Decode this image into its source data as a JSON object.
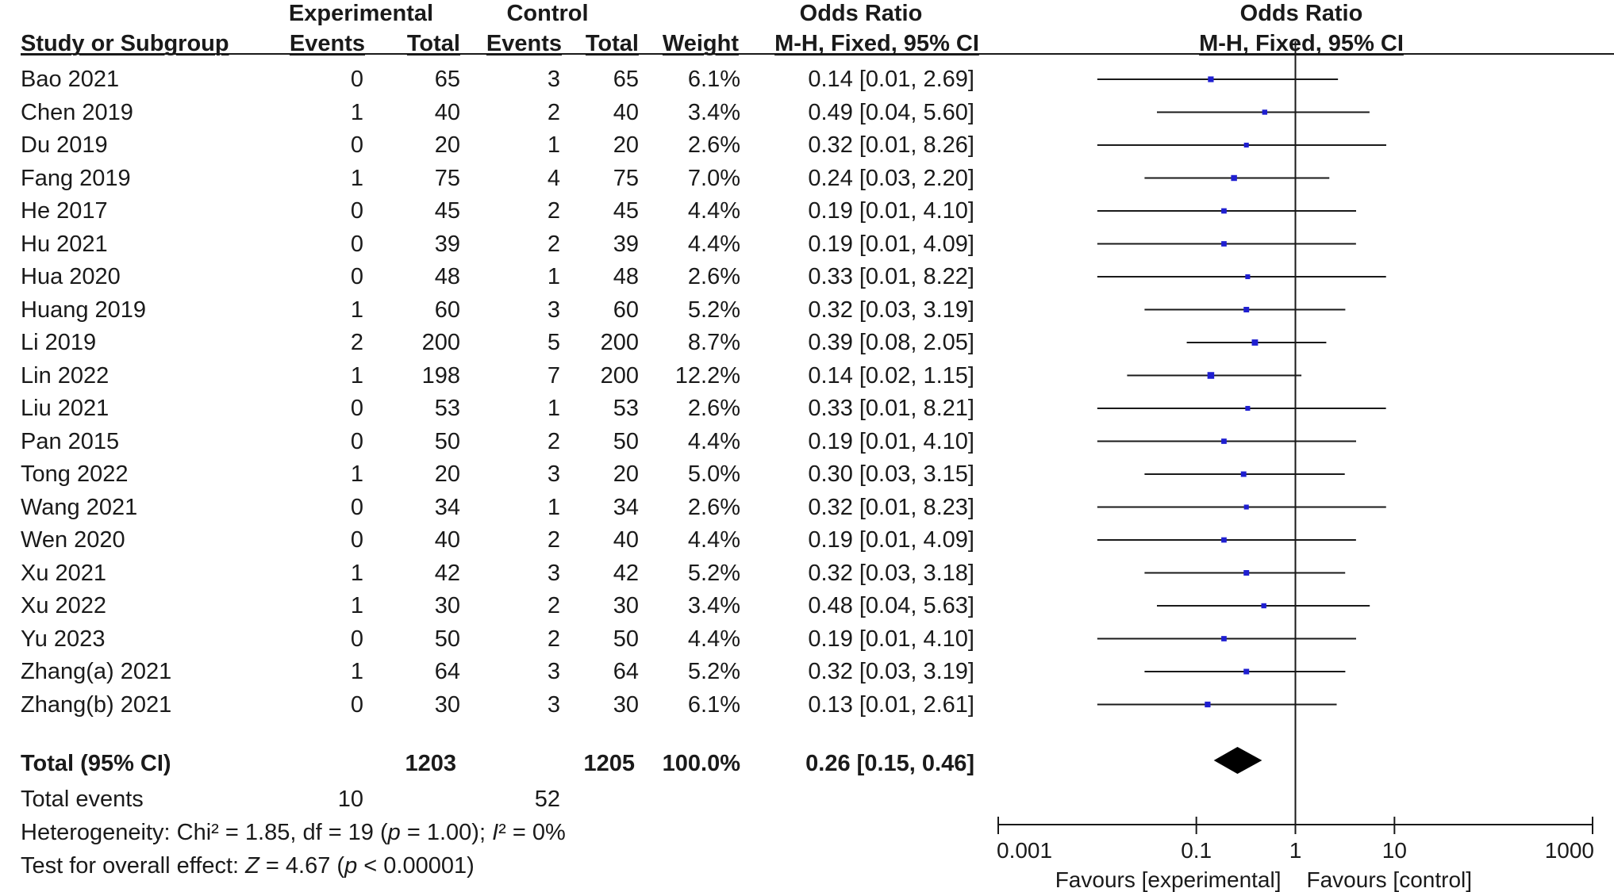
{
  "headers": {
    "group_experimental": "Experimental",
    "group_control": "Control",
    "odds_ratio_left": "Odds Ratio",
    "odds_ratio_right": "Odds Ratio",
    "study": "Study or Subgroup",
    "events_exp": "Events",
    "total_exp": "Total",
    "events_ctl": "Events",
    "total_ctl": "Total",
    "weight": "Weight",
    "method_left": "M-H, Fixed, 95% CI",
    "method_right": "M-H, Fixed, 95% CI"
  },
  "studies": [
    {
      "name": "Bao 2021",
      "e_events": "0",
      "e_total": "65",
      "c_events": "3",
      "c_total": "65",
      "weight": "6.1%",
      "ci": "0.14 [0.01, 2.69]"
    },
    {
      "name": "Chen 2019",
      "e_events": "1",
      "e_total": "40",
      "c_events": "2",
      "c_total": "40",
      "weight": "3.4%",
      "ci": "0.49 [0.04, 5.60]"
    },
    {
      "name": "Du 2019",
      "e_events": "0",
      "e_total": "20",
      "c_events": "1",
      "c_total": "20",
      "weight": "2.6%",
      "ci": "0.32 [0.01, 8.26]"
    },
    {
      "name": "Fang 2019",
      "e_events": "1",
      "e_total": "75",
      "c_events": "4",
      "c_total": "75",
      "weight": "7.0%",
      "ci": "0.24 [0.03, 2.20]"
    },
    {
      "name": "He 2017",
      "e_events": "0",
      "e_total": "45",
      "c_events": "2",
      "c_total": "45",
      "weight": "4.4%",
      "ci": "0.19 [0.01, 4.10]"
    },
    {
      "name": "Hu 2021",
      "e_events": "0",
      "e_total": "39",
      "c_events": "2",
      "c_total": "39",
      "weight": "4.4%",
      "ci": "0.19 [0.01, 4.09]"
    },
    {
      "name": "Hua 2020",
      "e_events": "0",
      "e_total": "48",
      "c_events": "1",
      "c_total": "48",
      "weight": "2.6%",
      "ci": "0.33 [0.01, 8.22]"
    },
    {
      "name": "Huang 2019",
      "e_events": "1",
      "e_total": "60",
      "c_events": "3",
      "c_total": "60",
      "weight": "5.2%",
      "ci": "0.32 [0.03, 3.19]"
    },
    {
      "name": "Li 2019",
      "e_events": "2",
      "e_total": "200",
      "c_events": "5",
      "c_total": "200",
      "weight": "8.7%",
      "ci": "0.39 [0.08, 2.05]"
    },
    {
      "name": "Lin 2022",
      "e_events": "1",
      "e_total": "198",
      "c_events": "7",
      "c_total": "200",
      "weight": "12.2%",
      "ci": "0.14 [0.02, 1.15]"
    },
    {
      "name": "Liu 2021",
      "e_events": "0",
      "e_total": "53",
      "c_events": "1",
      "c_total": "53",
      "weight": "2.6%",
      "ci": "0.33 [0.01, 8.21]"
    },
    {
      "name": "Pan 2015",
      "e_events": "0",
      "e_total": "50",
      "c_events": "2",
      "c_total": "50",
      "weight": "4.4%",
      "ci": "0.19 [0.01, 4.10]"
    },
    {
      "name": "Tong 2022",
      "e_events": "1",
      "e_total": "20",
      "c_events": "3",
      "c_total": "20",
      "weight": "5.0%",
      "ci": "0.30 [0.03, 3.15]"
    },
    {
      "name": "Wang 2021",
      "e_events": "0",
      "e_total": "34",
      "c_events": "1",
      "c_total": "34",
      "weight": "2.6%",
      "ci": "0.32 [0.01, 8.23]"
    },
    {
      "name": "Wen 2020",
      "e_events": "0",
      "e_total": "40",
      "c_events": "2",
      "c_total": "40",
      "weight": "4.4%",
      "ci": "0.19 [0.01, 4.09]"
    },
    {
      "name": "Xu 2021",
      "e_events": "1",
      "e_total": "42",
      "c_events": "3",
      "c_total": "42",
      "weight": "5.2%",
      "ci": "0.32 [0.03, 3.18]"
    },
    {
      "name": "Xu 2022",
      "e_events": "1",
      "e_total": "30",
      "c_events": "2",
      "c_total": "30",
      "weight": "3.4%",
      "ci": "0.48 [0.04, 5.63]"
    },
    {
      "name": "Yu 2023",
      "e_events": "0",
      "e_total": "50",
      "c_events": "2",
      "c_total": "50",
      "weight": "4.4%",
      "ci": "0.19 [0.01, 4.10]"
    },
    {
      "name": "Zhang(a) 2021",
      "e_events": "1",
      "e_total": "64",
      "c_events": "3",
      "c_total": "64",
      "weight": "5.2%",
      "ci": "0.32 [0.03, 3.19]"
    },
    {
      "name": "Zhang(b) 2021",
      "e_events": "0",
      "e_total": "30",
      "c_events": "3",
      "c_total": "30",
      "weight": "6.1%",
      "ci": "0.13 [0.01, 2.61]"
    }
  ],
  "total": {
    "label": "Total (95% CI)",
    "e_total": "1203",
    "c_total": "1205",
    "weight": "100.0%",
    "ci": "0.26 [0.15, 0.46]"
  },
  "total_events": {
    "label": "Total events",
    "experimental": "10",
    "control": "52"
  },
  "heterogeneity": {
    "prefix": "Heterogeneity: Chi² = 1.85, df = 19 (",
    "p_symbol": "p",
    "middle": " = 1.00); ",
    "i2_symbol": "I",
    "suffix": "² = 0%"
  },
  "overall_effect": {
    "prefix": "Test for overall effect: ",
    "z_symbol": "Z",
    "middle": " = 4.67 (",
    "p_symbol": "p",
    "suffix": " < 0.00001)"
  },
  "chart_data": {
    "type": "forest",
    "scale": "log",
    "xlim": [
      0.001,
      1000
    ],
    "null_line": 1,
    "tick_values": [
      0.001,
      0.1,
      1,
      10,
      1000
    ],
    "tick_labels": [
      "0.001",
      "0.1",
      "1",
      "10",
      "1000"
    ],
    "favours_left": "Favours [experimental]",
    "favours_right": "Favours [control]",
    "marker_color": "#1f1fd1",
    "points": [
      {
        "study": "Bao 2021",
        "or": 0.14,
        "lower": 0.01,
        "upper": 2.69,
        "weight": 6.1
      },
      {
        "study": "Chen 2019",
        "or": 0.49,
        "lower": 0.04,
        "upper": 5.6,
        "weight": 3.4
      },
      {
        "study": "Du 2019",
        "or": 0.32,
        "lower": 0.01,
        "upper": 8.26,
        "weight": 2.6
      },
      {
        "study": "Fang 2019",
        "or": 0.24,
        "lower": 0.03,
        "upper": 2.2,
        "weight": 7.0
      },
      {
        "study": "He 2017",
        "or": 0.19,
        "lower": 0.01,
        "upper": 4.1,
        "weight": 4.4
      },
      {
        "study": "Hu 2021",
        "or": 0.19,
        "lower": 0.01,
        "upper": 4.09,
        "weight": 4.4
      },
      {
        "study": "Hua 2020",
        "or": 0.33,
        "lower": 0.01,
        "upper": 8.22,
        "weight": 2.6
      },
      {
        "study": "Huang 2019",
        "or": 0.32,
        "lower": 0.03,
        "upper": 3.19,
        "weight": 5.2
      },
      {
        "study": "Li 2019",
        "or": 0.39,
        "lower": 0.08,
        "upper": 2.05,
        "weight": 8.7
      },
      {
        "study": "Lin 2022",
        "or": 0.14,
        "lower": 0.02,
        "upper": 1.15,
        "weight": 12.2
      },
      {
        "study": "Liu 2021",
        "or": 0.33,
        "lower": 0.01,
        "upper": 8.21,
        "weight": 2.6
      },
      {
        "study": "Pan 2015",
        "or": 0.19,
        "lower": 0.01,
        "upper": 4.1,
        "weight": 4.4
      },
      {
        "study": "Tong 2022",
        "or": 0.3,
        "lower": 0.03,
        "upper": 3.15,
        "weight": 5.0
      },
      {
        "study": "Wang 2021",
        "or": 0.32,
        "lower": 0.01,
        "upper": 8.23,
        "weight": 2.6
      },
      {
        "study": "Wen 2020",
        "or": 0.19,
        "lower": 0.01,
        "upper": 4.09,
        "weight": 4.4
      },
      {
        "study": "Xu 2021",
        "or": 0.32,
        "lower": 0.03,
        "upper": 3.18,
        "weight": 5.2
      },
      {
        "study": "Xu 2022",
        "or": 0.48,
        "lower": 0.04,
        "upper": 5.63,
        "weight": 3.4
      },
      {
        "study": "Yu 2023",
        "or": 0.19,
        "lower": 0.01,
        "upper": 4.1,
        "weight": 4.4
      },
      {
        "study": "Zhang(a) 2021",
        "or": 0.32,
        "lower": 0.03,
        "upper": 3.19,
        "weight": 5.2
      },
      {
        "study": "Zhang(b) 2021",
        "or": 0.13,
        "lower": 0.01,
        "upper": 2.61,
        "weight": 6.1
      }
    ],
    "pooled": {
      "or": 0.26,
      "lower": 0.15,
      "upper": 0.46
    }
  }
}
